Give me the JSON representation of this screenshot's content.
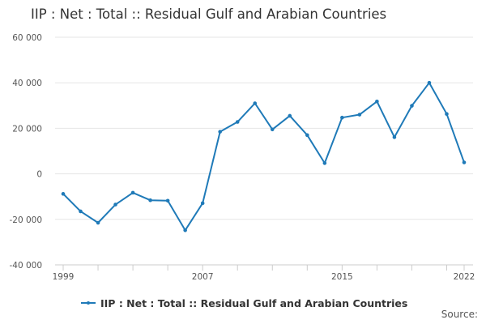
{
  "colors": {
    "series": "#1f7ab8",
    "grid": "#e6e6e6",
    "axis": "#cccccc",
    "text": "#333333"
  },
  "source_label": "Source:",
  "chart_data": {
    "type": "line",
    "title": "IIP : Net : Total :: Residual Gulf and Arabian Countries",
    "xlabel": "",
    "ylabel": "",
    "ylim": [
      -40000,
      60000
    ],
    "yticks": [
      60000,
      40000,
      20000,
      0,
      -20000,
      -40000
    ],
    "ytick_labels": [
      "60 000",
      "40 000",
      "20 000",
      "0",
      "-20 000",
      "-40 000"
    ],
    "xlim": [
      1999,
      2022
    ],
    "xticks": [
      1999,
      2007,
      2015,
      2022
    ],
    "xtick_labels": [
      "1999",
      "2007",
      "2015",
      "2022"
    ],
    "grid": "horizontal",
    "legend_position": "bottom",
    "x": [
      1999,
      2000,
      2001,
      2002,
      2003,
      2004,
      2005,
      2006,
      2007,
      2008,
      2009,
      2010,
      2011,
      2012,
      2013,
      2014,
      2015,
      2016,
      2017,
      2018,
      2019,
      2020,
      2021,
      2022
    ],
    "series": [
      {
        "name": "IIP : Net : Total :: Residual Gulf and Arabian Countries",
        "values": [
          -8800,
          -16500,
          -21500,
          -13500,
          -8300,
          -11600,
          -11800,
          -24800,
          -12900,
          18500,
          22800,
          31000,
          19500,
          25500,
          17000,
          4700,
          24700,
          26000,
          31800,
          16100,
          29900,
          40000,
          26300,
          5000
        ]
      }
    ]
  }
}
